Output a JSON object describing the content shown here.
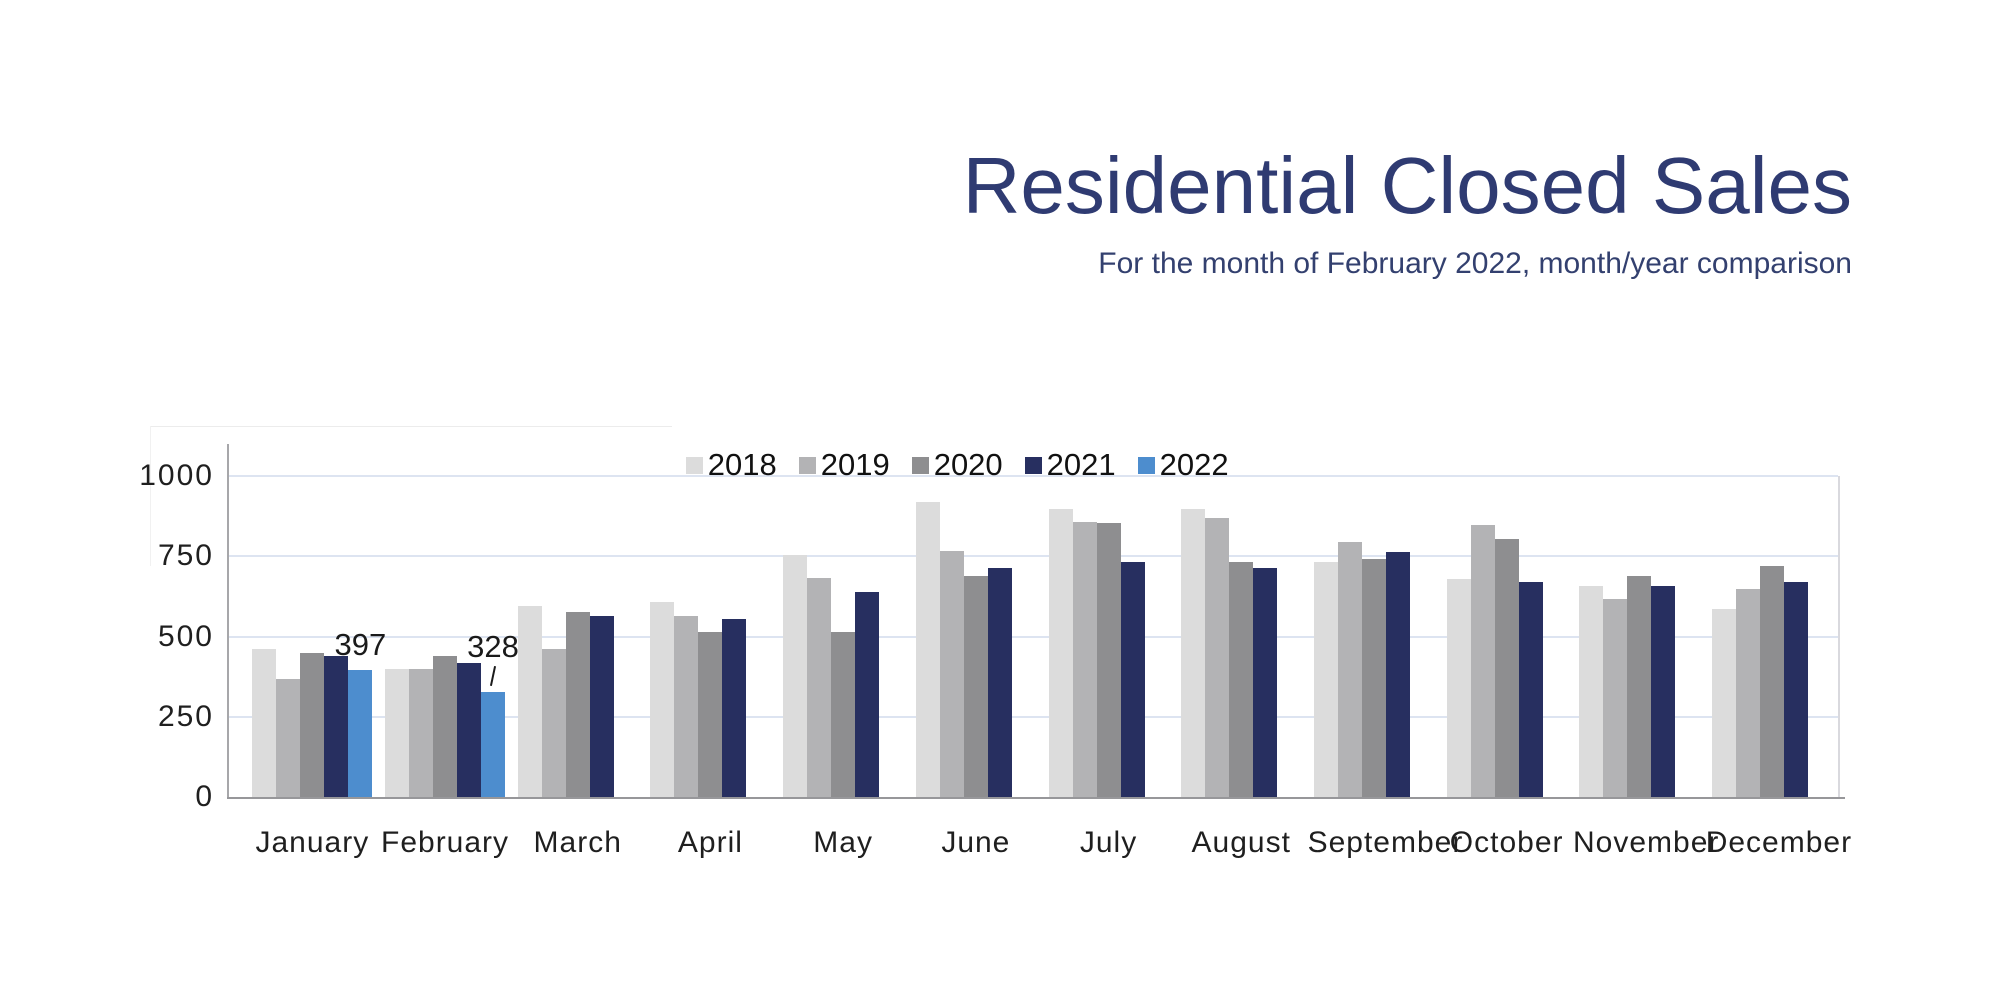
{
  "header": {
    "title": "Residential Closed Sales",
    "subtitle": "For the month of February 2022, month/year comparison",
    "title_color": "#2F3B72"
  },
  "palette": {
    "series_2018": "#DCDCDC",
    "series_2019": "#B3B3B5",
    "series_2020": "#8E8E90",
    "series_2021": "#272F60",
    "series_2022": "#4D8DCE",
    "gridline": "#DDE4F1",
    "axis_line": "#A7A7AA",
    "baseline": "#97979A",
    "plot_right_border": "#D9D9DE",
    "tick_text": "#1F1F1F",
    "annotation_text": "#1A1A1A"
  },
  "chart_data": {
    "type": "bar",
    "title": "Residential Closed Sales",
    "subtitle": "For the month of February 2022, month/year comparison",
    "categories": [
      "January",
      "February",
      "March",
      "April",
      "May",
      "June",
      "July",
      "August",
      "September",
      "October",
      "November",
      "December"
    ],
    "series": [
      {
        "name": "2018",
        "color": "#DCDCDC",
        "values": [
          462,
          400,
          595,
          607,
          754,
          919,
          897,
          897,
          733,
          679,
          656,
          586
        ]
      },
      {
        "name": "2019",
        "color": "#B3B3B5",
        "values": [
          367,
          398,
          462,
          564,
          682,
          765,
          857,
          868,
          795,
          847,
          617,
          648
        ]
      },
      {
        "name": "2020",
        "color": "#8E8E90",
        "values": [
          450,
          440,
          576,
          513,
          513,
          690,
          855,
          733,
          741,
          803,
          690,
          721
        ]
      },
      {
        "name": "2021",
        "color": "#272F60",
        "values": [
          438,
          417,
          564,
          553,
          638,
          713,
          733,
          712,
          762,
          671,
          658,
          671
        ]
      },
      {
        "name": "2022",
        "color": "#4D8DCE",
        "values": [
          397,
          328,
          null,
          null,
          null,
          null,
          null,
          null,
          null,
          null,
          null,
          null
        ]
      }
    ],
    "annotations": [
      {
        "text": "397",
        "category": "January",
        "series": "2022",
        "value": 397,
        "leader": false
      },
      {
        "text": "328",
        "category": "February",
        "series": "2022",
        "value": 328,
        "leader": true
      }
    ],
    "xlabel": "",
    "ylabel": "",
    "ylim": [
      0,
      1000
    ],
    "yticks": [
      0,
      250,
      500,
      750,
      1000
    ],
    "grid": "horizontal",
    "legend_position": "top-center"
  }
}
